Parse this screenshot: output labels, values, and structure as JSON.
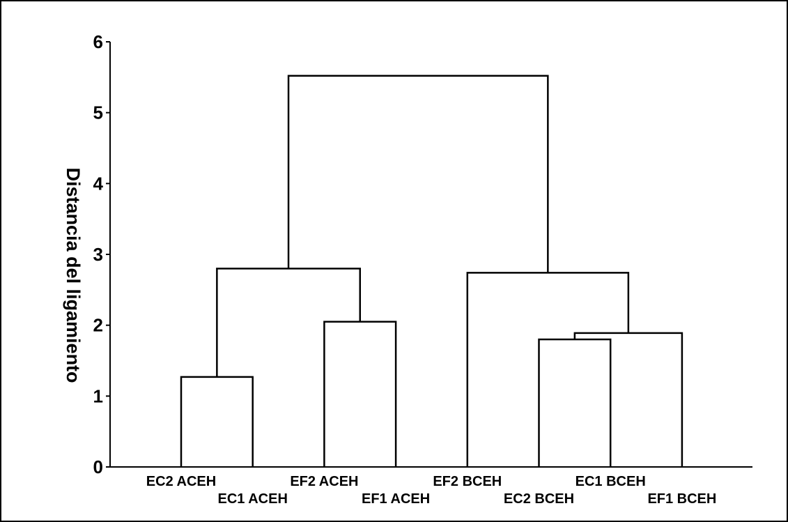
{
  "chart_data": {
    "type": "dendrogram",
    "title": "",
    "xlabel": "",
    "ylabel": "Distancia del ligamiento",
    "ylim": [
      0,
      6
    ],
    "yticks": [
      "0",
      "1",
      "2",
      "3",
      "4",
      "5",
      "6"
    ],
    "grid": false,
    "leaves": [
      "EC2 ACEH",
      "EC1 ACEH",
      "EF2 ACEH",
      "EF1 ACEH",
      "EF2 BCEH",
      "EC2 BCEH",
      "EC1 BCEH",
      "EF1 BCEH"
    ],
    "merges": [
      {
        "left": "EC2 ACEH",
        "right": "EC1 ACEH",
        "height": 1.27
      },
      {
        "left": "EF2 ACEH",
        "right": "EF1 ACEH",
        "height": 2.05
      },
      {
        "left": "EC2 BCEH",
        "right": "EC1 BCEH",
        "height": 1.8
      },
      {
        "left": "EC2 BCEH + EC1 BCEH",
        "right": "EF1 BCEH",
        "height": 1.89
      },
      {
        "left": "EC2 ACEH + EC1 ACEH",
        "right": "EF2 ACEH + EF1 ACEH",
        "height": 2.8
      },
      {
        "left": "EF2 BCEH",
        "right": "EC2 BCEH + EC1 BCEH + EF1 BCEH",
        "height": 2.74
      },
      {
        "left": "ACEH group",
        "right": "BCEH group",
        "height": 5.52
      }
    ],
    "colors": {
      "lines": "#000000",
      "background": "#ffffff",
      "border": "#000000"
    }
  }
}
